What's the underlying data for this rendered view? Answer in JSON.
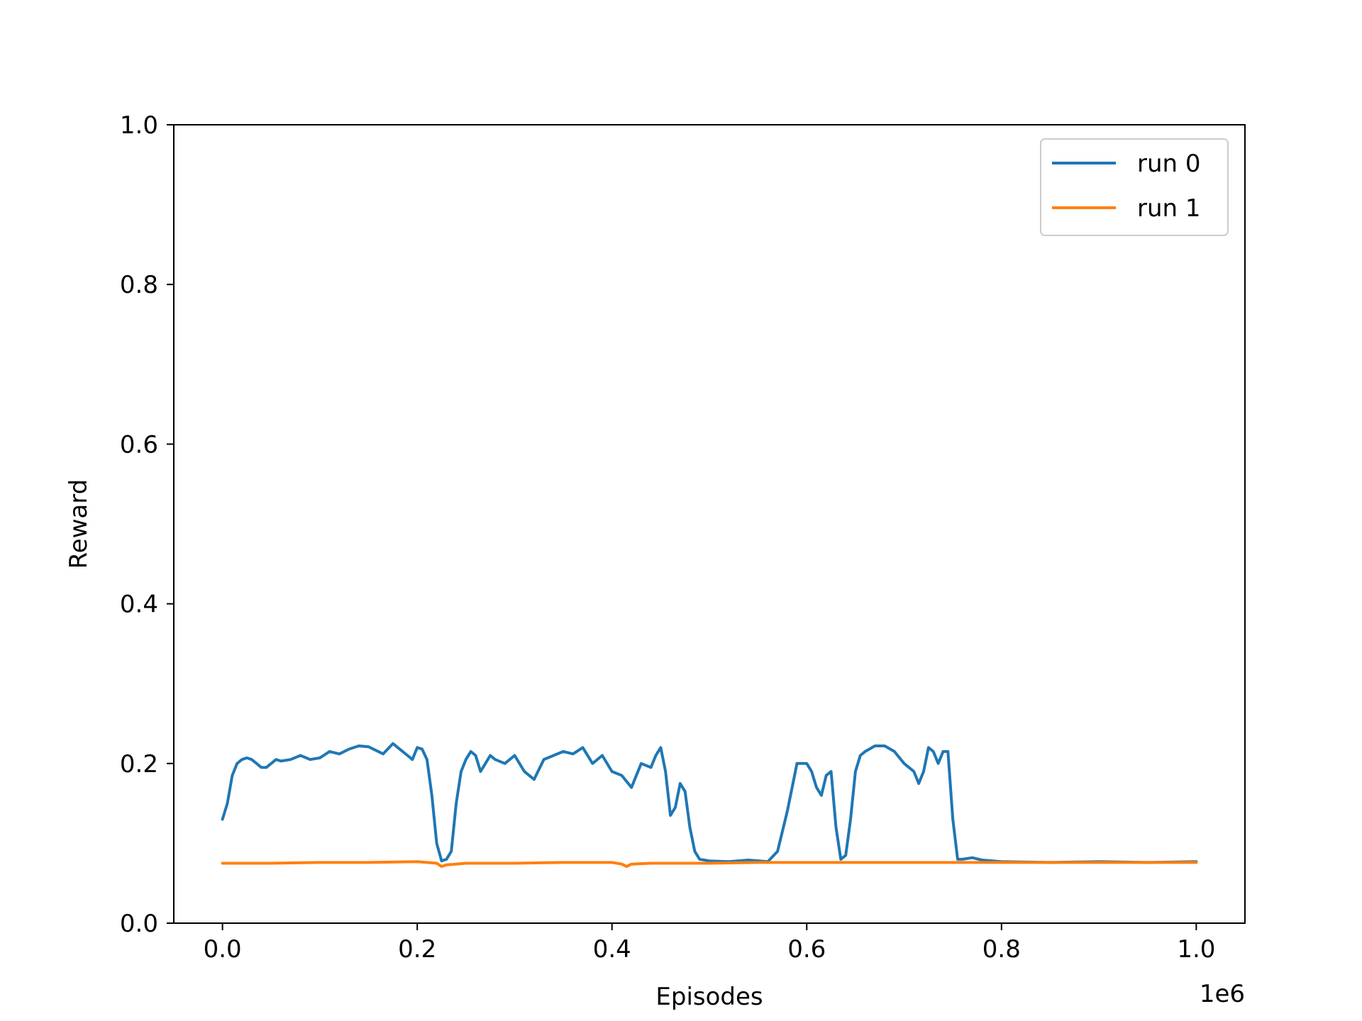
{
  "chart_data": {
    "type": "line",
    "title": "",
    "xlabel": "Episodes",
    "ylabel": "Reward",
    "x_offset_label": "1e6",
    "xlim": [
      -0.05,
      1.05
    ],
    "ylim": [
      0.0,
      1.0
    ],
    "x_ticks": [
      0.0,
      0.2,
      0.4,
      0.6,
      0.8,
      1.0
    ],
    "x_tick_labels": [
      "0.0",
      "0.2",
      "0.4",
      "0.6",
      "0.8",
      "1.0"
    ],
    "y_ticks": [
      0.0,
      0.2,
      0.4,
      0.6,
      0.8,
      1.0
    ],
    "y_tick_labels": [
      "0.0",
      "0.2",
      "0.4",
      "0.6",
      "0.8",
      "1.0"
    ],
    "grid": false,
    "legend_position": "top-right",
    "series": [
      {
        "name": "run 0",
        "color": "#1f77b4",
        "x": [
          0.0,
          0.005,
          0.01,
          0.015,
          0.02,
          0.025,
          0.03,
          0.035,
          0.04,
          0.045,
          0.05,
          0.055,
          0.06,
          0.07,
          0.08,
          0.09,
          0.1,
          0.11,
          0.12,
          0.13,
          0.14,
          0.15,
          0.16,
          0.165,
          0.175,
          0.18,
          0.19,
          0.195,
          0.2,
          0.205,
          0.21,
          0.215,
          0.22,
          0.225,
          0.23,
          0.235,
          0.24,
          0.245,
          0.25,
          0.255,
          0.26,
          0.265,
          0.27,
          0.275,
          0.28,
          0.29,
          0.3,
          0.31,
          0.32,
          0.33,
          0.34,
          0.35,
          0.36,
          0.37,
          0.38,
          0.39,
          0.4,
          0.41,
          0.42,
          0.43,
          0.44,
          0.445,
          0.45,
          0.455,
          0.46,
          0.465,
          0.47,
          0.475,
          0.48,
          0.485,
          0.49,
          0.5,
          0.52,
          0.54,
          0.56,
          0.57,
          0.58,
          0.59,
          0.6,
          0.605,
          0.61,
          0.615,
          0.62,
          0.625,
          0.63,
          0.635,
          0.64,
          0.645,
          0.65,
          0.655,
          0.66,
          0.67,
          0.68,
          0.69,
          0.7,
          0.71,
          0.715,
          0.72,
          0.725,
          0.73,
          0.735,
          0.74,
          0.745,
          0.75,
          0.755,
          0.76,
          0.77,
          0.78,
          0.8,
          0.85,
          0.9,
          0.95,
          1.0
        ],
        "y": [
          0.13,
          0.15,
          0.185,
          0.2,
          0.205,
          0.207,
          0.205,
          0.2,
          0.195,
          0.195,
          0.2,
          0.205,
          0.203,
          0.205,
          0.21,
          0.205,
          0.207,
          0.215,
          0.212,
          0.218,
          0.222,
          0.221,
          0.215,
          0.212,
          0.225,
          0.22,
          0.21,
          0.205,
          0.22,
          0.218,
          0.205,
          0.16,
          0.1,
          0.078,
          0.08,
          0.09,
          0.15,
          0.19,
          0.205,
          0.215,
          0.21,
          0.19,
          0.2,
          0.21,
          0.205,
          0.2,
          0.21,
          0.19,
          0.18,
          0.205,
          0.21,
          0.215,
          0.212,
          0.22,
          0.2,
          0.21,
          0.19,
          0.185,
          0.17,
          0.2,
          0.195,
          0.21,
          0.22,
          0.19,
          0.135,
          0.145,
          0.175,
          0.165,
          0.12,
          0.09,
          0.08,
          0.078,
          0.077,
          0.079,
          0.077,
          0.09,
          0.14,
          0.2,
          0.2,
          0.19,
          0.17,
          0.16,
          0.185,
          0.19,
          0.12,
          0.08,
          0.085,
          0.13,
          0.19,
          0.21,
          0.215,
          0.222,
          0.222,
          0.215,
          0.2,
          0.19,
          0.175,
          0.19,
          0.22,
          0.215,
          0.2,
          0.215,
          0.215,
          0.13,
          0.08,
          0.08,
          0.082,
          0.079,
          0.077,
          0.076,
          0.077,
          0.076,
          0.077
        ]
      },
      {
        "name": "run 1",
        "color": "#ff7f0e",
        "x": [
          0.0,
          0.05,
          0.1,
          0.15,
          0.2,
          0.22,
          0.225,
          0.23,
          0.25,
          0.3,
          0.35,
          0.4,
          0.41,
          0.415,
          0.42,
          0.44,
          0.5,
          0.55,
          0.6,
          0.65,
          0.7,
          0.75,
          0.8,
          0.85,
          0.9,
          0.95,
          1.0
        ],
        "y": [
          0.075,
          0.075,
          0.076,
          0.076,
          0.077,
          0.075,
          0.071,
          0.073,
          0.075,
          0.075,
          0.076,
          0.076,
          0.074,
          0.071,
          0.074,
          0.075,
          0.075,
          0.076,
          0.076,
          0.076,
          0.076,
          0.076,
          0.076,
          0.076,
          0.076,
          0.076,
          0.076
        ]
      }
    ]
  }
}
